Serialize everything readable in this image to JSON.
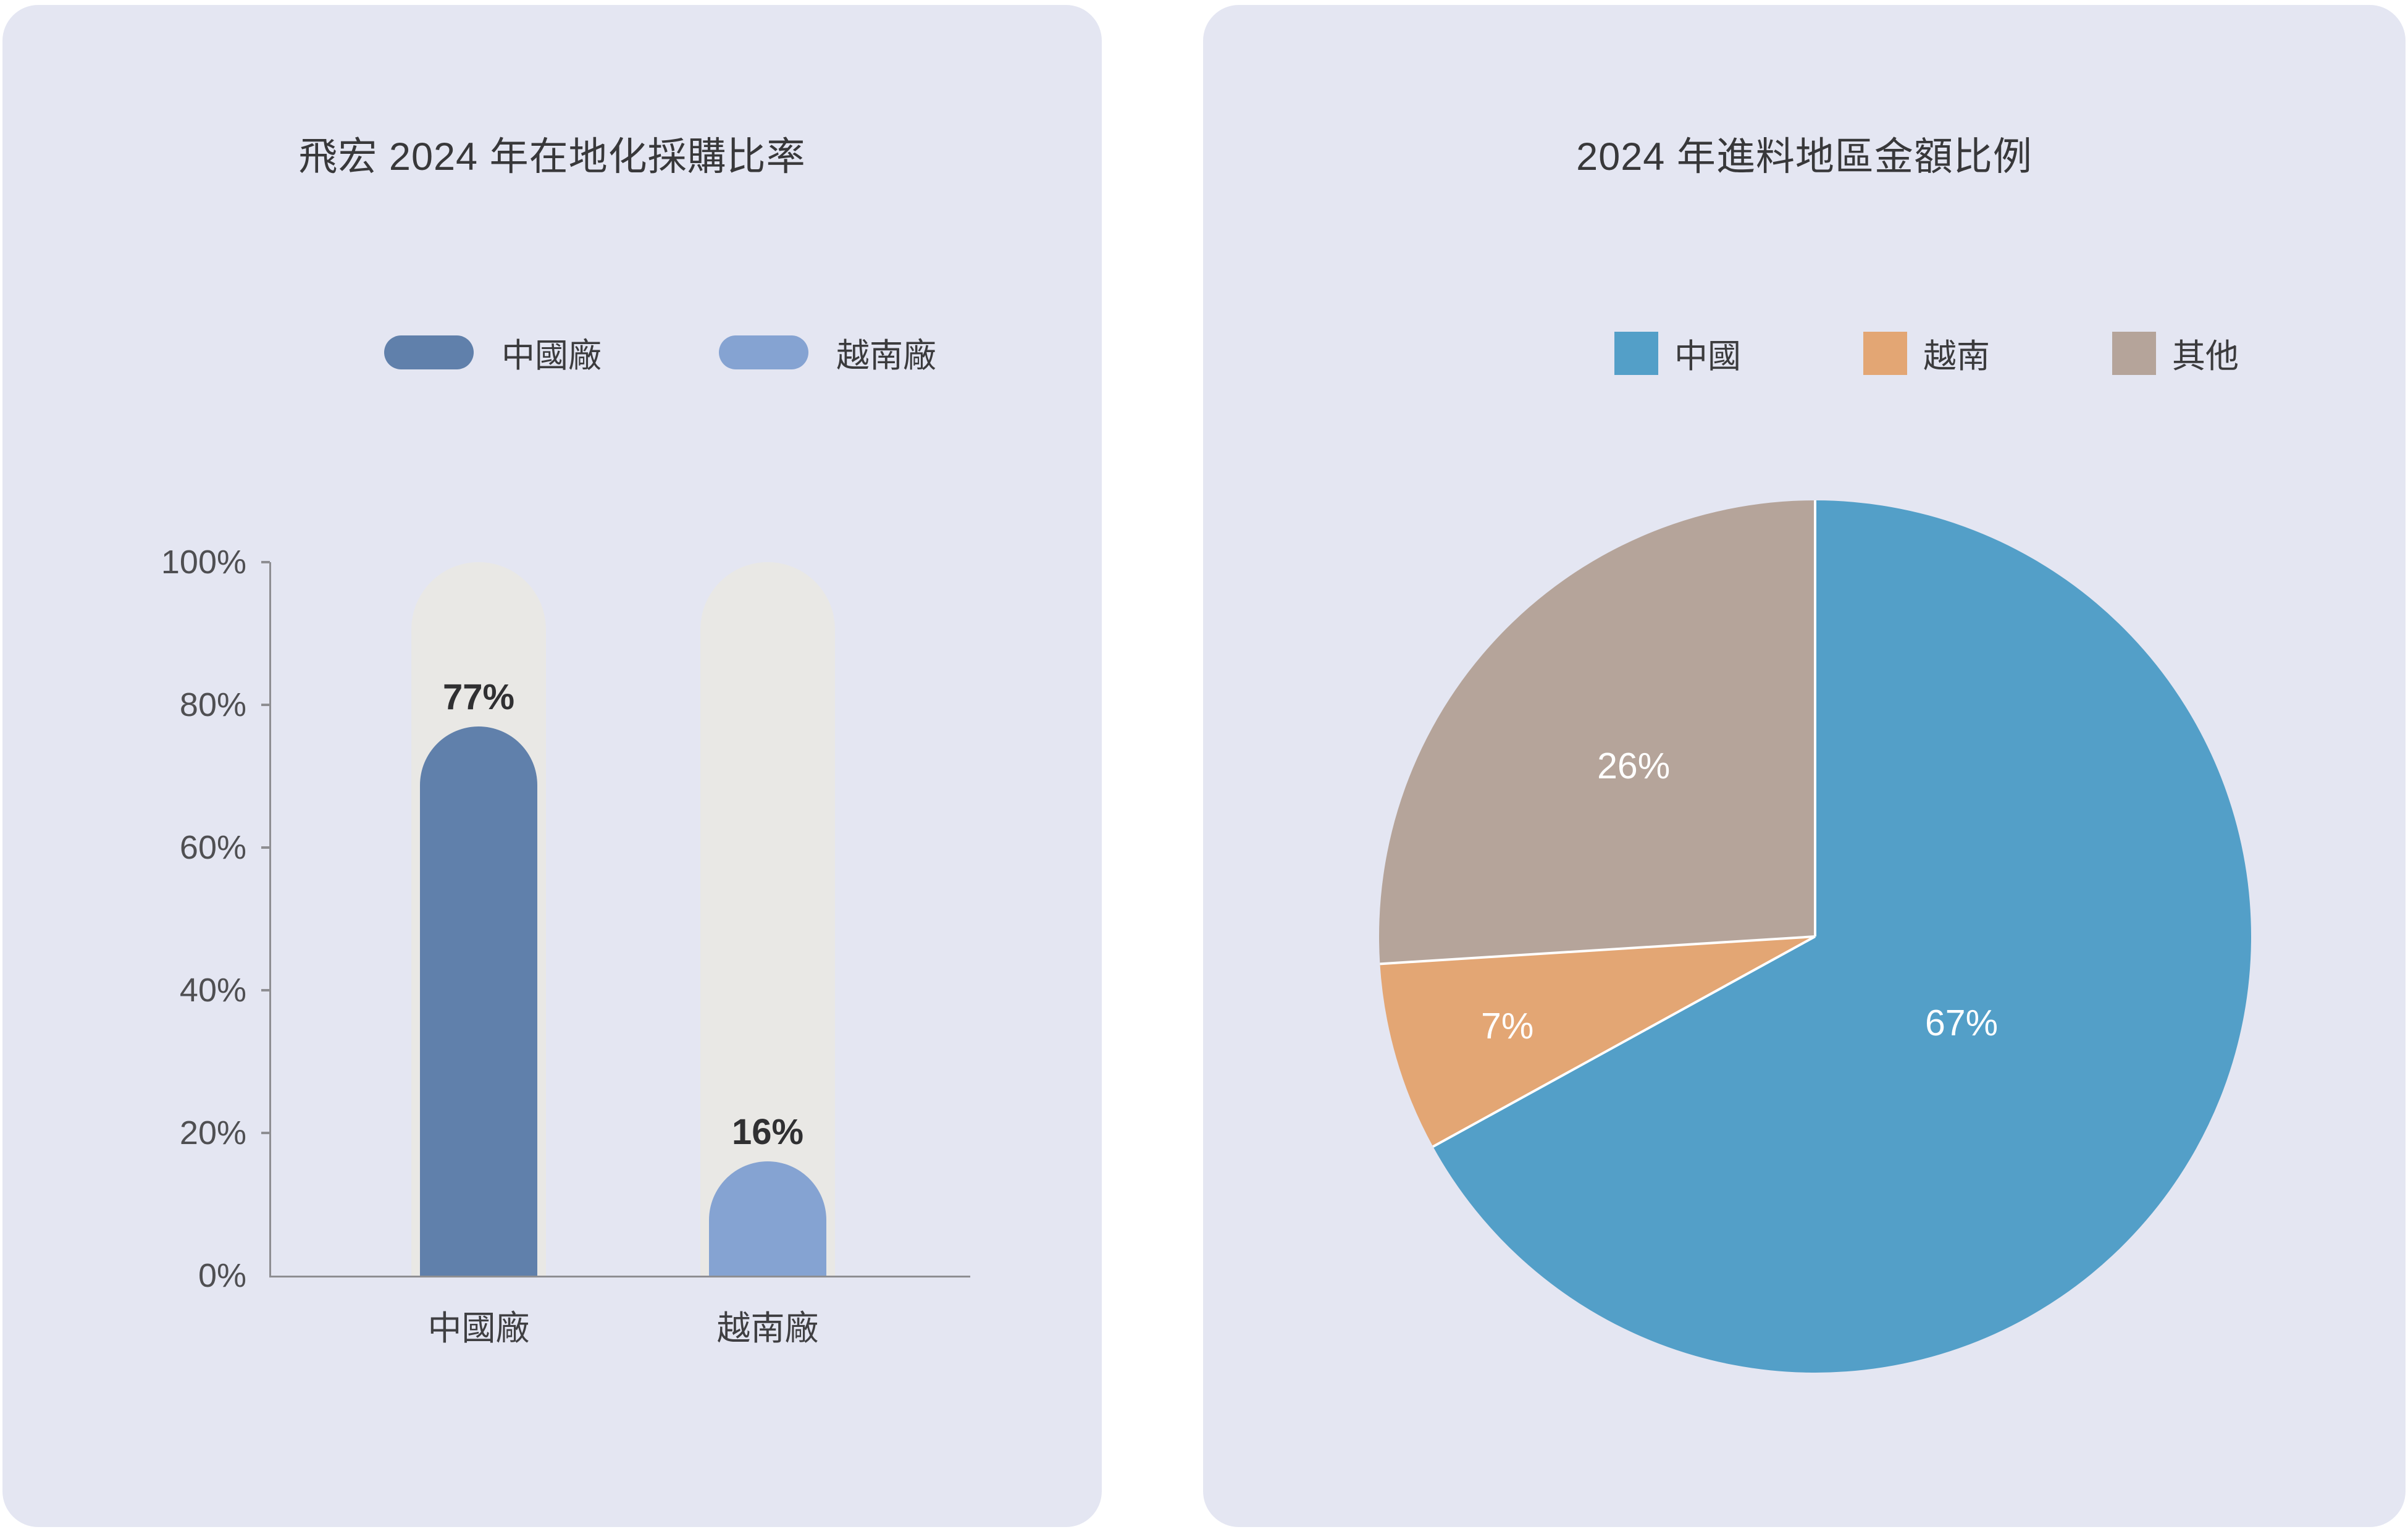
{
  "chart_data": [
    {
      "type": "bar",
      "title": "飛宏 2024 年在地化採購比率",
      "categories": [
        "中國廠",
        "越南廠"
      ],
      "values": [
        77,
        16
      ],
      "value_labels": [
        "77%",
        "16%"
      ],
      "bar_colors": [
        "#6080ab",
        "#85a3d2"
      ],
      "track_color": "#e9e8e5",
      "legend": [
        {
          "label": "中國廠",
          "color": "#6080ab"
        },
        {
          "label": "越南廠",
          "color": "#85a3d2"
        }
      ],
      "ylabel": "",
      "xlabel": "",
      "ylim": [
        0,
        100
      ],
      "yticks": [
        "0%",
        "20%",
        "40%",
        "60%",
        "80%",
        "100%"
      ],
      "grid": false,
      "legend_position": "top"
    },
    {
      "type": "pie",
      "title": "2024 年進料地區金額比例",
      "categories": [
        "中國",
        "越南",
        "其他"
      ],
      "values": [
        67,
        7,
        26
      ],
      "value_labels": [
        "67%",
        "7%",
        "26%"
      ],
      "colors": [
        "#539fc8",
        "#e3a674",
        "#b5a49a"
      ],
      "legend": [
        {
          "label": "中國",
          "color": "#539fc8"
        },
        {
          "label": "越南",
          "color": "#e3a674"
        },
        {
          "label": "其他",
          "color": "#b5a49a"
        }
      ],
      "start_angle_deg_from_top": 0,
      "direction": "clockwise",
      "separator_color": "#ffffff",
      "label_radius_factors": [
        0.39,
        0.735,
        0.571
      ],
      "legend_position": "top"
    }
  ]
}
